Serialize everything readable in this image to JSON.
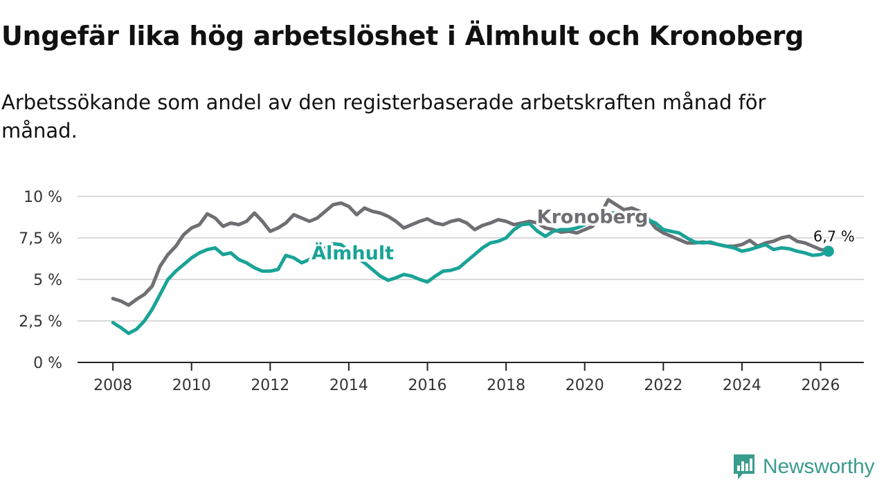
{
  "header": {
    "title": "Ungefär lika hög arbetslöshet i Älmhult och Kronoberg",
    "subtitle": "Arbetssökande som andel av den registerbaserade arbetskraften månad för månad."
  },
  "branding": {
    "logo_text": "Newsworthy",
    "logo_color": "#3a9c8e",
    "logo_icon": "bar-chart-speech-icon"
  },
  "chart_data": {
    "type": "line",
    "title": "Ungefär lika hög arbetslöshet i Älmhult och Kronoberg",
    "subtitle": "Arbetssökande som andel av den registerbaserade arbetskraften månad för månad.",
    "xlabel": "",
    "ylabel": "",
    "xlim": [
      2007.1,
      2027.1
    ],
    "ylim": [
      0,
      10
    ],
    "x_ticks": [
      2008,
      2010,
      2012,
      2014,
      2016,
      2018,
      2020,
      2022,
      2024,
      2026
    ],
    "x_tick_labels": [
      "2008",
      "2010",
      "2012",
      "2014",
      "2016",
      "2018",
      "2020",
      "2022",
      "2024",
      "2026"
    ],
    "y_ticks": [
      0,
      2.5,
      5,
      7.5,
      10
    ],
    "y_tick_labels": [
      "0 %",
      "2,5 %",
      "5 %",
      "7,5 %",
      "10 %"
    ],
    "grid": true,
    "series": [
      {
        "name": "Kronoberg",
        "color": "#6e6e73",
        "label": "Kronoberg",
        "points": [
          [
            2008.0,
            3.85
          ],
          [
            2008.2,
            3.7
          ],
          [
            2008.4,
            3.45
          ],
          [
            2008.6,
            3.8
          ],
          [
            2008.8,
            4.1
          ],
          [
            2009.0,
            4.6
          ],
          [
            2009.2,
            5.8
          ],
          [
            2009.4,
            6.5
          ],
          [
            2009.6,
            7.0
          ],
          [
            2009.8,
            7.7
          ],
          [
            2010.0,
            8.1
          ],
          [
            2010.2,
            8.3
          ],
          [
            2010.4,
            8.95
          ],
          [
            2010.6,
            8.7
          ],
          [
            2010.8,
            8.2
          ],
          [
            2011.0,
            8.4
          ],
          [
            2011.2,
            8.3
          ],
          [
            2011.4,
            8.5
          ],
          [
            2011.6,
            9.0
          ],
          [
            2011.8,
            8.5
          ],
          [
            2012.0,
            7.9
          ],
          [
            2012.2,
            8.1
          ],
          [
            2012.4,
            8.4
          ],
          [
            2012.6,
            8.9
          ],
          [
            2012.8,
            8.7
          ],
          [
            2013.0,
            8.5
          ],
          [
            2013.2,
            8.7
          ],
          [
            2013.4,
            9.1
          ],
          [
            2013.6,
            9.5
          ],
          [
            2013.8,
            9.6
          ],
          [
            2014.0,
            9.4
          ],
          [
            2014.2,
            8.9
          ],
          [
            2014.4,
            9.3
          ],
          [
            2014.6,
            9.1
          ],
          [
            2014.8,
            9.0
          ],
          [
            2015.0,
            8.8
          ],
          [
            2015.2,
            8.5
          ],
          [
            2015.4,
            8.1
          ],
          [
            2015.6,
            8.3
          ],
          [
            2015.8,
            8.5
          ],
          [
            2016.0,
            8.65
          ],
          [
            2016.2,
            8.4
          ],
          [
            2016.4,
            8.3
          ],
          [
            2016.6,
            8.5
          ],
          [
            2016.8,
            8.6
          ],
          [
            2017.0,
            8.4
          ],
          [
            2017.2,
            8.0
          ],
          [
            2017.4,
            8.25
          ],
          [
            2017.6,
            8.4
          ],
          [
            2017.8,
            8.6
          ],
          [
            2018.0,
            8.5
          ],
          [
            2018.2,
            8.3
          ],
          [
            2018.4,
            8.4
          ],
          [
            2018.6,
            8.5
          ],
          [
            2018.8,
            8.4
          ],
          [
            2019.0,
            8.1
          ],
          [
            2019.2,
            8.0
          ],
          [
            2019.4,
            7.85
          ],
          [
            2019.6,
            7.9
          ],
          [
            2019.8,
            7.8
          ],
          [
            2020.0,
            8.0
          ],
          [
            2020.2,
            8.2
          ],
          [
            2020.4,
            8.9
          ],
          [
            2020.6,
            9.8
          ],
          [
            2020.8,
            9.5
          ],
          [
            2021.0,
            9.2
          ],
          [
            2021.2,
            9.3
          ],
          [
            2021.4,
            9.1
          ],
          [
            2021.6,
            8.7
          ],
          [
            2021.8,
            8.1
          ],
          [
            2022.0,
            7.8
          ],
          [
            2022.2,
            7.6
          ],
          [
            2022.4,
            7.4
          ],
          [
            2022.6,
            7.2
          ],
          [
            2022.8,
            7.2
          ],
          [
            2023.0,
            7.25
          ],
          [
            2023.2,
            7.2
          ],
          [
            2023.4,
            7.1
          ],
          [
            2023.6,
            7.0
          ],
          [
            2023.8,
            7.0
          ],
          [
            2024.0,
            7.1
          ],
          [
            2024.2,
            7.35
          ],
          [
            2024.4,
            7.0
          ],
          [
            2024.6,
            7.2
          ],
          [
            2024.8,
            7.3
          ],
          [
            2025.0,
            7.5
          ],
          [
            2025.2,
            7.6
          ],
          [
            2025.4,
            7.3
          ],
          [
            2025.6,
            7.2
          ],
          [
            2025.8,
            7.0
          ],
          [
            2026.0,
            6.8
          ],
          [
            2026.2,
            6.75
          ]
        ]
      },
      {
        "name": "Älmhult",
        "color": "#1aa397",
        "label": "Älmhult",
        "points": [
          [
            2008.0,
            2.4
          ],
          [
            2008.2,
            2.1
          ],
          [
            2008.4,
            1.75
          ],
          [
            2008.6,
            2.0
          ],
          [
            2008.8,
            2.5
          ],
          [
            2009.0,
            3.2
          ],
          [
            2009.2,
            4.1
          ],
          [
            2009.4,
            5.0
          ],
          [
            2009.6,
            5.5
          ],
          [
            2009.8,
            5.9
          ],
          [
            2010.0,
            6.3
          ],
          [
            2010.2,
            6.6
          ],
          [
            2010.4,
            6.8
          ],
          [
            2010.6,
            6.9
          ],
          [
            2010.8,
            6.5
          ],
          [
            2011.0,
            6.6
          ],
          [
            2011.2,
            6.2
          ],
          [
            2011.4,
            6.0
          ],
          [
            2011.6,
            5.7
          ],
          [
            2011.8,
            5.5
          ],
          [
            2012.0,
            5.5
          ],
          [
            2012.2,
            5.6
          ],
          [
            2012.4,
            6.45
          ],
          [
            2012.6,
            6.3
          ],
          [
            2012.8,
            6.0
          ],
          [
            2013.0,
            6.2
          ],
          [
            2013.2,
            6.5
          ],
          [
            2013.4,
            6.9
          ],
          [
            2013.6,
            7.15
          ],
          [
            2013.8,
            7.1
          ],
          [
            2014.0,
            6.7
          ],
          [
            2014.2,
            6.3
          ],
          [
            2014.4,
            6.0
          ],
          [
            2014.6,
            5.6
          ],
          [
            2014.8,
            5.2
          ],
          [
            2015.0,
            4.95
          ],
          [
            2015.2,
            5.1
          ],
          [
            2015.4,
            5.3
          ],
          [
            2015.6,
            5.2
          ],
          [
            2015.8,
            5.0
          ],
          [
            2016.0,
            4.85
          ],
          [
            2016.2,
            5.2
          ],
          [
            2016.4,
            5.5
          ],
          [
            2016.6,
            5.55
          ],
          [
            2016.8,
            5.7
          ],
          [
            2017.0,
            6.1
          ],
          [
            2017.2,
            6.5
          ],
          [
            2017.4,
            6.9
          ],
          [
            2017.6,
            7.2
          ],
          [
            2017.8,
            7.3
          ],
          [
            2018.0,
            7.5
          ],
          [
            2018.2,
            8.0
          ],
          [
            2018.4,
            8.3
          ],
          [
            2018.6,
            8.35
          ],
          [
            2018.8,
            7.9
          ],
          [
            2019.0,
            7.6
          ],
          [
            2019.2,
            7.9
          ],
          [
            2019.4,
            8.0
          ],
          [
            2019.6,
            8.0
          ],
          [
            2019.8,
            8.1
          ],
          [
            2020.0,
            8.3
          ],
          [
            2020.2,
            8.5
          ],
          [
            2020.4,
            8.8
          ],
          [
            2020.6,
            9.0
          ],
          [
            2020.8,
            9.0
          ],
          [
            2021.0,
            8.8
          ],
          [
            2021.2,
            8.9
          ],
          [
            2021.4,
            8.8
          ],
          [
            2021.6,
            8.6
          ],
          [
            2021.8,
            8.4
          ],
          [
            2022.0,
            8.0
          ],
          [
            2022.2,
            7.9
          ],
          [
            2022.4,
            7.8
          ],
          [
            2022.6,
            7.5
          ],
          [
            2022.8,
            7.25
          ],
          [
            2023.0,
            7.2
          ],
          [
            2023.2,
            7.25
          ],
          [
            2023.4,
            7.1
          ],
          [
            2023.6,
            7.0
          ],
          [
            2023.8,
            6.9
          ],
          [
            2024.0,
            6.7
          ],
          [
            2024.2,
            6.8
          ],
          [
            2024.4,
            6.95
          ],
          [
            2024.6,
            7.1
          ],
          [
            2024.8,
            6.8
          ],
          [
            2025.0,
            6.9
          ],
          [
            2025.2,
            6.85
          ],
          [
            2025.4,
            6.7
          ],
          [
            2025.6,
            6.6
          ],
          [
            2025.8,
            6.45
          ],
          [
            2026.0,
            6.5
          ],
          [
            2026.2,
            6.7
          ]
        ]
      }
    ],
    "annotations": [
      {
        "series": "Kronoberg",
        "text": "Kronoberg",
        "x": 2020.2,
        "y": 8.4
      },
      {
        "series": "Älmhult",
        "text": "Älmhult",
        "x": 2014.1,
        "y": 6.2
      },
      {
        "series": "Älmhult",
        "text": "6,7 %",
        "x": 2026.2,
        "y": 6.7,
        "marker": true
      }
    ]
  }
}
